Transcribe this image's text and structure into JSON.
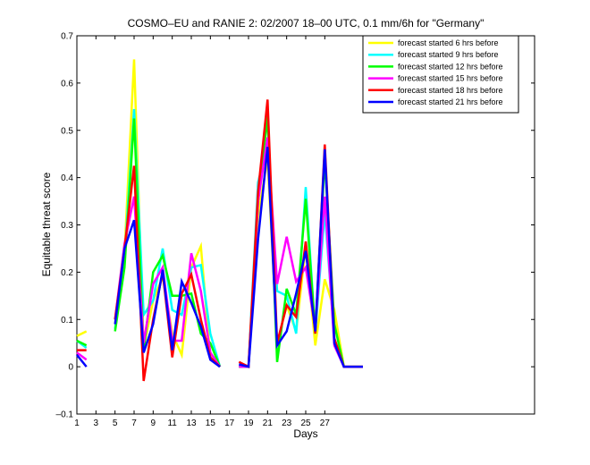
{
  "chart_data": {
    "type": "line",
    "title": "COSMO–EU and RANIE 2: 02/2007 18–00 UTC, 0.1 mm/6h for \"Germany\"",
    "xlabel": "Days",
    "ylabel": "Equitable threat score",
    "xlim": [
      1,
      49
    ],
    "ylim": [
      -0.1,
      0.7
    ],
    "x_ticks": [
      1,
      3,
      5,
      7,
      9,
      11,
      13,
      15,
      17,
      19,
      21,
      23,
      25,
      27
    ],
    "x_tick_labels": [
      "1",
      "3",
      "5",
      "7",
      "9",
      "11",
      "13",
      "15",
      "17",
      "19",
      "21",
      "23",
      "25",
      "27"
    ],
    "y_ticks": [
      -0.1,
      0,
      0.1,
      0.2,
      0.3,
      0.4,
      0.5,
      0.6,
      0.7
    ],
    "y_tick_labels": [
      "–0.1",
      "0",
      "0.1",
      "0.2",
      "0.3",
      "0.4",
      "0.5",
      "0.6",
      "0.7"
    ],
    "grid": false,
    "legend_position": "top-right",
    "x": [
      1,
      2,
      3,
      4,
      5,
      6,
      7,
      8,
      9,
      10,
      11,
      12,
      13,
      14,
      15,
      16,
      17,
      18,
      19,
      20,
      21,
      22,
      23,
      24,
      25,
      26,
      27,
      28,
      29,
      30,
      31
    ],
    "series": [
      {
        "name": "forecast started 6 hrs before",
        "color": "#ffff00",
        "values": [
          0.065,
          0.075,
          null,
          null,
          0.09,
          0.24,
          0.65,
          0.04,
          0.14,
          0.19,
          0.07,
          0.025,
          0.21,
          0.255,
          0.02,
          0,
          null,
          0,
          0,
          0.32,
          0.44,
          0.05,
          0.13,
          0.075,
          0.255,
          0.045,
          0.185,
          0.12,
          0,
          0,
          0
        ]
      },
      {
        "name": "forecast started 9 hrs before",
        "color": "#00ffff",
        "values": [
          0.055,
          0.04,
          null,
          null,
          0.08,
          0.23,
          0.545,
          0.11,
          0.14,
          0.25,
          0.12,
          0.11,
          0.21,
          0.215,
          0.07,
          0,
          null,
          0,
          0,
          0.39,
          0.47,
          0.16,
          0.15,
          0.07,
          0.38,
          0.07,
          0.33,
          0.06,
          0,
          0,
          0
        ]
      },
      {
        "name": "forecast started 12 hrs before",
        "color": "#00ff00",
        "values": [
          0.055,
          0.045,
          null,
          null,
          0.075,
          0.21,
          0.525,
          0.035,
          0.2,
          0.235,
          0.15,
          0.15,
          0.155,
          0.07,
          0.05,
          0,
          null,
          0,
          0,
          0.35,
          0.53,
          0.01,
          0.165,
          0.11,
          0.355,
          0.07,
          0.44,
          0.09,
          0,
          0,
          0
        ]
      },
      {
        "name": "forecast started 15 hrs before",
        "color": "#ff00ff",
        "values": [
          0.03,
          0.015,
          null,
          null,
          0.1,
          0.26,
          0.36,
          0.05,
          0.175,
          0.21,
          0.055,
          0.055,
          0.24,
          0.16,
          0.03,
          0,
          null,
          0,
          0,
          0.35,
          0.485,
          0.175,
          0.275,
          0.18,
          0.21,
          0.08,
          0.36,
          0.045,
          0,
          0,
          0
        ]
      },
      {
        "name": "forecast started 18 hrs before",
        "color": "#ff0000",
        "values": [
          0.035,
          0.035,
          null,
          null,
          0.1,
          0.25,
          0.425,
          -0.03,
          0.1,
          0.2,
          0.02,
          0.155,
          0.195,
          0.1,
          0.02,
          0,
          null,
          0.01,
          0,
          0.37,
          0.565,
          0.05,
          0.13,
          0.105,
          0.265,
          0.07,
          0.47,
          0.06,
          0,
          0,
          0
        ]
      },
      {
        "name": "forecast started 21 hrs before",
        "color": "#0000ff",
        "values": [
          0.025,
          0,
          null,
          null,
          0.09,
          0.25,
          0.31,
          0.03,
          0.09,
          0.205,
          0.035,
          0.18,
          0.135,
          0.085,
          0.015,
          0,
          null,
          0.005,
          0,
          0.27,
          0.465,
          0.045,
          0.075,
          0.155,
          0.245,
          0.075,
          0.46,
          0.05,
          0,
          0,
          0
        ]
      }
    ]
  }
}
